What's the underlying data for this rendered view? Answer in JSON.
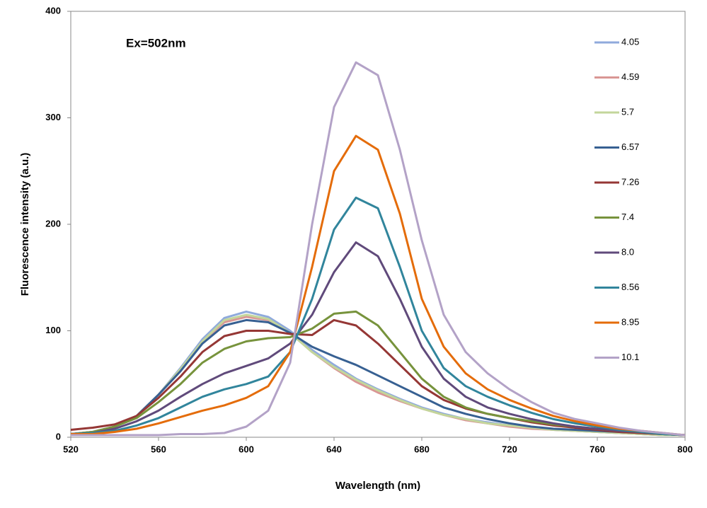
{
  "chart_data": {
    "type": "line",
    "annotation": "Ex=502nm",
    "xlabel": "Wavelength (nm)",
    "ylabel": "Fluorescence intensity (a.u.)",
    "x": [
      520,
      530,
      540,
      550,
      560,
      570,
      580,
      590,
      600,
      610,
      620,
      630,
      640,
      650,
      660,
      670,
      680,
      690,
      700,
      710,
      720,
      730,
      740,
      750,
      760,
      770,
      780,
      790,
      800
    ],
    "xlim": [
      520,
      800
    ],
    "xticks": [
      520,
      560,
      600,
      640,
      680,
      720,
      760,
      800
    ],
    "ylim": [
      0,
      400
    ],
    "yticks": [
      0,
      100,
      200,
      300,
      400
    ],
    "legend": "right",
    "series": [
      {
        "name": "4.05",
        "color": "#8faadc",
        "values": [
          3,
          5,
          10,
          20,
          40,
          65,
          92,
          112,
          118,
          113,
          100,
          82,
          68,
          55,
          45,
          36,
          28,
          22,
          17,
          14,
          11,
          9,
          7,
          6,
          5,
          4,
          3,
          2,
          2
        ]
      },
      {
        "name": "4.59",
        "color": "#d99694",
        "values": [
          3,
          5,
          10,
          20,
          40,
          63,
          90,
          108,
          113,
          110,
          98,
          80,
          65,
          52,
          42,
          34,
          27,
          21,
          16,
          13,
          10,
          8,
          7,
          6,
          5,
          4,
          3,
          2,
          2
        ]
      },
      {
        "name": "5.7",
        "color": "#c3d69b",
        "values": [
          3,
          5,
          10,
          20,
          40,
          64,
          90,
          110,
          115,
          111,
          98,
          80,
          66,
          54,
          44,
          35,
          27,
          21,
          17,
          13,
          11,
          9,
          7,
          6,
          5,
          4,
          3,
          2,
          2
        ]
      },
      {
        "name": "6.57",
        "color": "#376092",
        "values": [
          3,
          5,
          10,
          20,
          40,
          62,
          88,
          105,
          110,
          108,
          98,
          85,
          76,
          68,
          58,
          48,
          38,
          28,
          22,
          17,
          13,
          10,
          8,
          7,
          6,
          5,
          4,
          3,
          2
        ]
      },
      {
        "name": "7.26",
        "color": "#953735",
        "values": [
          7,
          9,
          12,
          20,
          37,
          57,
          80,
          95,
          100,
          100,
          97,
          96,
          110,
          105,
          88,
          68,
          48,
          35,
          27,
          22,
          18,
          14,
          11,
          9,
          7,
          5,
          4,
          3,
          2
        ]
      },
      {
        "name": "7.4",
        "color": "#77933c",
        "values": [
          3,
          5,
          10,
          18,
          33,
          50,
          70,
          83,
          90,
          93,
          94,
          102,
          116,
          118,
          105,
          80,
          55,
          38,
          28,
          22,
          18,
          15,
          12,
          10,
          8,
          6,
          5,
          3,
          2
        ]
      },
      {
        "name": "8.0",
        "color": "#604a7b",
        "values": [
          3,
          4,
          8,
          15,
          25,
          38,
          50,
          60,
          67,
          74,
          88,
          115,
          155,
          183,
          170,
          130,
          85,
          55,
          38,
          28,
          22,
          17,
          13,
          10,
          8,
          6,
          5,
          3,
          2
        ]
      },
      {
        "name": "8.56",
        "color": "#31859c",
        "values": [
          3,
          4,
          6,
          11,
          18,
          28,
          38,
          45,
          50,
          57,
          80,
          130,
          195,
          225,
          215,
          160,
          100,
          65,
          48,
          38,
          30,
          23,
          17,
          13,
          10,
          7,
          5,
          3,
          2
        ]
      },
      {
        "name": "8.95",
        "color": "#e46c0a",
        "values": [
          3,
          3,
          5,
          8,
          13,
          19,
          25,
          30,
          37,
          48,
          80,
          160,
          250,
          283,
          270,
          210,
          130,
          85,
          60,
          45,
          35,
          27,
          20,
          15,
          11,
          8,
          6,
          4,
          2
        ]
      },
      {
        "name": "10.1",
        "color": "#b3a2c7",
        "values": [
          2,
          2,
          2,
          2,
          2,
          3,
          3,
          4,
          10,
          25,
          70,
          200,
          310,
          352,
          340,
          270,
          185,
          115,
          80,
          60,
          45,
          33,
          23,
          17,
          13,
          9,
          6,
          4,
          2
        ]
      }
    ]
  }
}
